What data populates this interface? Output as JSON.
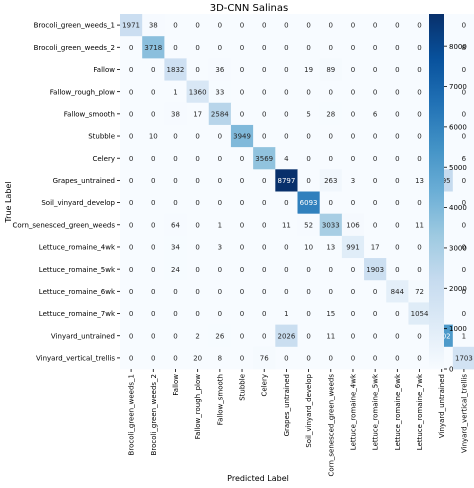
{
  "chart_data": {
    "type": "heatmap",
    "title": "3D-CNN Salinas",
    "xlabel": "Predicted Label",
    "ylabel": "True Label",
    "labels": [
      "Brocoli_green_weeds_1",
      "Brocoli_green_weeds_2",
      "Fallow",
      "Fallow_rough_plow",
      "Fallow_smooth",
      "Stubble",
      "Celery",
      "Grapes_untrained",
      "Soil_vinyard_develop",
      "Corn_senesced_green_weeds",
      "Lettuce_romaine_4wk",
      "Lettuce_romaine_5wk",
      "Lettuce_romaine_6wk",
      "Lettuce_romaine_7wk",
      "Vinyard_untrained",
      "Vinyard_vertical_trellis"
    ],
    "matrix": [
      [
        1971,
        38,
        0,
        0,
        0,
        0,
        0,
        0,
        0,
        0,
        0,
        0,
        0,
        0,
        0,
        0
      ],
      [
        0,
        3718,
        0,
        0,
        0,
        0,
        0,
        0,
        0,
        0,
        0,
        0,
        0,
        0,
        0,
        8
      ],
      [
        0,
        0,
        1832,
        0,
        36,
        0,
        0,
        0,
        19,
        89,
        0,
        0,
        0,
        0,
        0,
        0
      ],
      [
        0,
        0,
        1,
        1360,
        33,
        0,
        0,
        0,
        0,
        0,
        0,
        0,
        0,
        0,
        0,
        0
      ],
      [
        0,
        0,
        38,
        17,
        2584,
        0,
        0,
        0,
        5,
        28,
        0,
        6,
        0,
        0,
        0,
        0
      ],
      [
        0,
        10,
        0,
        0,
        0,
        3949,
        0,
        0,
        0,
        0,
        0,
        0,
        0,
        0,
        0,
        0
      ],
      [
        0,
        0,
        0,
        0,
        0,
        0,
        3569,
        4,
        0,
        0,
        0,
        0,
        0,
        0,
        0,
        6
      ],
      [
        0,
        0,
        0,
        0,
        0,
        0,
        0,
        8797,
        0,
        263,
        3,
        0,
        0,
        13,
        2195,
        0
      ],
      [
        0,
        0,
        0,
        0,
        0,
        0,
        0,
        0,
        6093,
        0,
        0,
        0,
        0,
        0,
        0,
        0
      ],
      [
        0,
        0,
        64,
        0,
        1,
        0,
        0,
        11,
        52,
        3033,
        106,
        0,
        0,
        11,
        0,
        0
      ],
      [
        0,
        0,
        34,
        0,
        3,
        0,
        0,
        0,
        10,
        13,
        991,
        17,
        0,
        0,
        0,
        0
      ],
      [
        0,
        0,
        24,
        0,
        0,
        0,
        0,
        0,
        0,
        0,
        0,
        1903,
        0,
        0,
        0,
        0
      ],
      [
        0,
        0,
        0,
        0,
        0,
        0,
        0,
        0,
        0,
        0,
        0,
        0,
        844,
        72,
        0,
        0
      ],
      [
        0,
        0,
        0,
        0,
        0,
        0,
        0,
        1,
        0,
        15,
        0,
        0,
        0,
        1054,
        0,
        0
      ],
      [
        0,
        0,
        0,
        2,
        26,
        0,
        0,
        2026,
        0,
        11,
        0,
        0,
        0,
        0,
        5202,
        1
      ],
      [
        0,
        0,
        0,
        20,
        8,
        0,
        76,
        0,
        0,
        0,
        0,
        0,
        0,
        0,
        0,
        1703
      ]
    ],
    "colorbar": {
      "colormap": "Blues",
      "min": 0,
      "max": 8797,
      "ticks": [
        0,
        1000,
        2000,
        3000,
        4000,
        5000,
        6000,
        7000,
        8000
      ]
    },
    "grid": false
  }
}
